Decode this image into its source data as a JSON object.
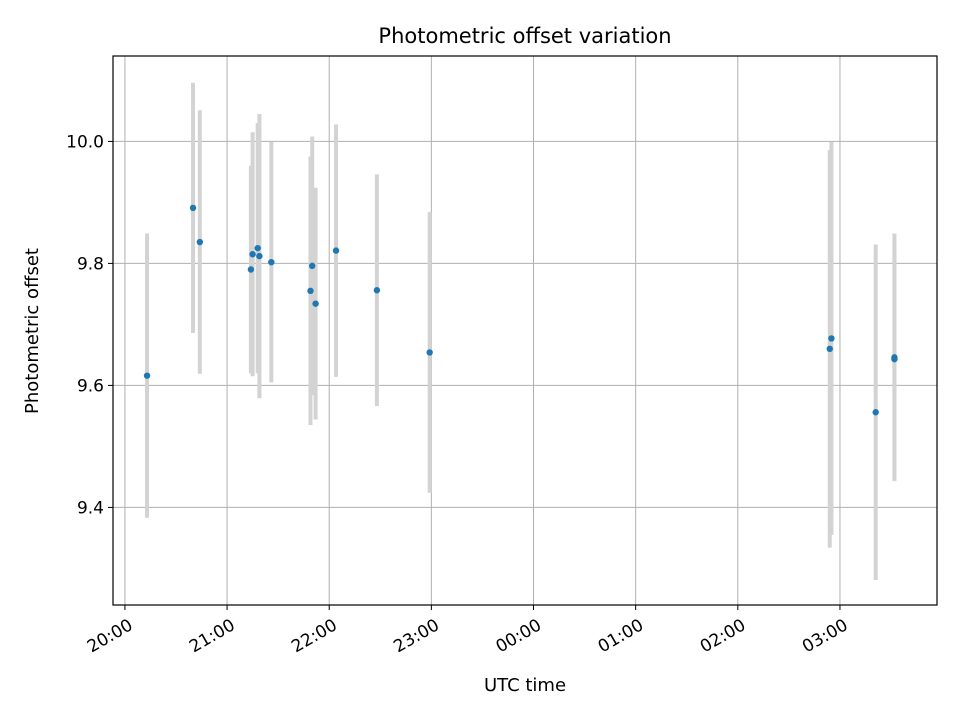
{
  "chart_data": {
    "type": "scatter",
    "title": "Photometric offset variation",
    "xlabel": "UTC time",
    "ylabel": "Photometric offset",
    "x_axis": {
      "kind": "time",
      "range": [
        "19:53",
        "03:57"
      ],
      "tick_values": [
        "20:00",
        "21:00",
        "22:00",
        "23:00",
        "00:00",
        "01:00",
        "02:00",
        "03:00"
      ],
      "tick_labels": [
        "20:00",
        "21:00",
        "22:00",
        "23:00",
        "00:00",
        "01:00",
        "02:00",
        "03:00"
      ]
    },
    "y_axis": {
      "range": [
        9.24,
        10.14
      ],
      "tick_values": [
        9.4,
        9.6,
        9.8,
        10.0
      ],
      "tick_labels": [
        "9.4",
        "9.6",
        "9.8",
        "10.0"
      ]
    },
    "grid": true,
    "marker_color": "#1f77b4",
    "errorbar_color": "#d3d3d3",
    "points": [
      {
        "x": "20:13",
        "y": 9.616,
        "err": 0.233
      },
      {
        "x": "20:40",
        "y": 9.891,
        "err": 0.205
      },
      {
        "x": "20:44",
        "y": 9.835,
        "err": 0.216
      },
      {
        "x": "21:14",
        "y": 9.79,
        "err": 0.17
      },
      {
        "x": "21:15",
        "y": 9.815,
        "err": 0.2
      },
      {
        "x": "21:18",
        "y": 9.825,
        "err": 0.205
      },
      {
        "x": "21:19",
        "y": 9.812,
        "err": 0.233
      },
      {
        "x": "21:26",
        "y": 9.802,
        "err": 0.197
      },
      {
        "x": "21:49",
        "y": 9.755,
        "err": 0.22
      },
      {
        "x": "21:50",
        "y": 9.796,
        "err": 0.212
      },
      {
        "x": "21:52",
        "y": 9.734,
        "err": 0.19
      },
      {
        "x": "22:04",
        "y": 9.821,
        "err": 0.207
      },
      {
        "x": "22:28",
        "y": 9.756,
        "err": 0.19
      },
      {
        "x": "22:59",
        "y": 9.654,
        "err": 0.23
      },
      {
        "x": "02:54",
        "y": 9.66,
        "err": 0.326
      },
      {
        "x": "02:55",
        "y": 9.677,
        "err": 0.322
      },
      {
        "x": "03:21",
        "y": 9.556,
        "err": 0.275
      },
      {
        "x": "03:32",
        "y": 9.646,
        "err": 0.203
      },
      {
        "x": "03:32",
        "y": 9.643,
        "err": 0.19
      }
    ]
  }
}
